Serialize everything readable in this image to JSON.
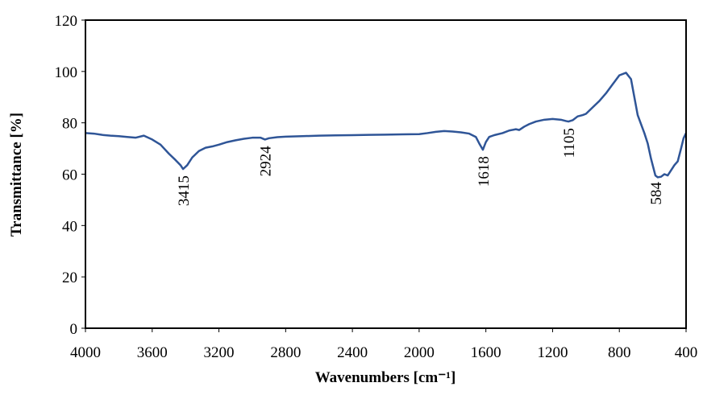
{
  "chart_data": {
    "type": "line",
    "x_label": "Wavenumbers [cm⁻¹]",
    "y_label": "Transmittance [%]",
    "color": "#2f5597",
    "x": [
      4000,
      3950,
      3900,
      3850,
      3800,
      3750,
      3700,
      3650,
      3600,
      3550,
      3500,
      3460,
      3430,
      3415,
      3390,
      3360,
      3320,
      3280,
      3240,
      3200,
      3150,
      3100,
      3050,
      3000,
      2950,
      2924,
      2900,
      2850,
      2800,
      2700,
      2600,
      2500,
      2400,
      2300,
      2200,
      2100,
      2000,
      1950,
      1900,
      1850,
      1800,
      1750,
      1700,
      1660,
      1640,
      1618,
      1600,
      1580,
      1550,
      1500,
      1460,
      1420,
      1400,
      1370,
      1340,
      1300,
      1250,
      1200,
      1150,
      1120,
      1105,
      1080,
      1050,
      1020,
      1000,
      960,
      920,
      880,
      840,
      800,
      760,
      730,
      710,
      690,
      670,
      650,
      630,
      610,
      590,
      584,
      570,
      550,
      530,
      510,
      490,
      470,
      450,
      430,
      415,
      400
    ],
    "values": [
      76,
      75.8,
      75.3,
      75,
      74.8,
      74.5,
      74.2,
      75,
      73.5,
      71.5,
      68,
      65.5,
      63.5,
      62,
      63.5,
      66.5,
      69,
      70.3,
      70.8,
      71.5,
      72.5,
      73.2,
      73.8,
      74.2,
      74.2,
      73.5,
      74,
      74.4,
      74.6,
      74.8,
      75,
      75.1,
      75.2,
      75.3,
      75.4,
      75.5,
      75.6,
      76,
      76.5,
      76.8,
      76.6,
      76.3,
      75.8,
      74.5,
      72,
      69.5,
      72.5,
      74.5,
      75.2,
      76,
      77,
      77.5,
      77.2,
      78.5,
      79.5,
      80.5,
      81.2,
      81.5,
      81.2,
      80.7,
      80.5,
      81,
      82.5,
      83,
      83.5,
      86,
      88.5,
      91.5,
      95,
      98.5,
      99.5,
      97,
      90,
      83,
      79.5,
      76,
      72,
      66,
      61,
      59.5,
      58.8,
      59,
      60,
      59.5,
      61.5,
      63.5,
      65,
      70,
      74,
      76
    ],
    "xlim": [
      4000,
      400
    ],
    "ylim": [
      0,
      120
    ],
    "xticks": [
      4000,
      3600,
      3200,
      2800,
      2400,
      2000,
      1600,
      1200,
      800,
      400
    ],
    "yticks": [
      0,
      20,
      40,
      60,
      80,
      100,
      120
    ],
    "annotations": [
      {
        "text": "3415",
        "x": 3415
      },
      {
        "text": "2924",
        "x": 2924
      },
      {
        "text": "1618",
        "x": 1618
      },
      {
        "text": "1105",
        "x": 1105
      },
      {
        "text": "584",
        "x": 584
      }
    ]
  }
}
